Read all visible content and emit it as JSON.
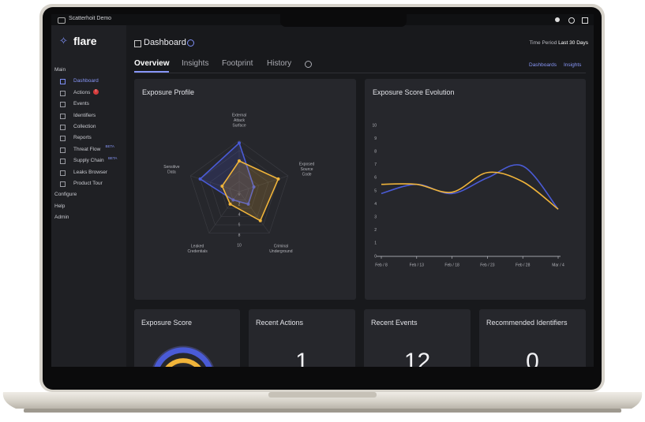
{
  "topbar": {
    "workspace": "Scatterhoit Demo"
  },
  "brand": "flare",
  "sidebar": {
    "groups": [
      {
        "label": "Main",
        "items": [
          {
            "label": "Dashboard"
          },
          {
            "label": "Actions",
            "badge": "!"
          },
          {
            "label": "Events"
          },
          {
            "label": "Identifiers"
          },
          {
            "label": "Collection"
          },
          {
            "label": "Reports"
          },
          {
            "label": "Threat Flow",
            "tag": "BETA"
          },
          {
            "label": "Supply Chain",
            "tag": "BETA"
          },
          {
            "label": "Leaks Browser"
          },
          {
            "label": "Product Tour"
          }
        ]
      },
      {
        "label": "Configure"
      },
      {
        "label": "Help"
      },
      {
        "label": "Admin"
      }
    ]
  },
  "header": {
    "title": "Dashboard",
    "period_label": "Time Period",
    "period": "Last 30 Days"
  },
  "tabs": [
    "Overview",
    "Insights",
    "Footprint",
    "History"
  ],
  "links": [
    "Dashboards",
    "Insights"
  ],
  "radar": {
    "type": "radar",
    "title": "Exposure Profile",
    "axes": [
      "External Attack Surface",
      "Exposed Source Code",
      "Criminal Underground",
      "Leaked Credentials",
      "Sensitive Data"
    ],
    "rlim": [
      0,
      10
    ],
    "rticks": [
      0,
      2,
      4,
      6,
      8,
      10
    ],
    "series": [
      {
        "color": "#4a5bd6",
        "values": [
          9.5,
          3,
          3,
          2,
          8
        ]
      },
      {
        "color": "#f0b43a",
        "values": [
          6,
          8,
          7,
          3,
          3.5
        ]
      }
    ]
  },
  "line": {
    "type": "line",
    "title": "Exposure Score Evolution",
    "categories": [
      "Feb / 8",
      "Feb / 13",
      "Feb / 18",
      "Feb / 23",
      "Feb / 28",
      "Mar / 4"
    ],
    "ylim": [
      0,
      10
    ],
    "yticks": [
      0,
      1,
      2,
      3,
      4,
      5,
      6,
      7,
      8,
      9,
      10
    ],
    "series": [
      {
        "color": "#4a5bd6",
        "values": [
          4.8,
          5.5,
          4.8,
          6.0,
          6.9,
          3.6
        ]
      },
      {
        "color": "#f0b43a",
        "values": [
          5.5,
          5.5,
          4.9,
          6.4,
          5.7,
          3.6
        ]
      }
    ]
  },
  "cards": [
    {
      "title": "Exposure Score"
    },
    {
      "title": "Recent Actions",
      "value": 1
    },
    {
      "title": "Recent Events",
      "value": 12
    },
    {
      "title": "Recommended Identifiers",
      "value": 0
    }
  ]
}
